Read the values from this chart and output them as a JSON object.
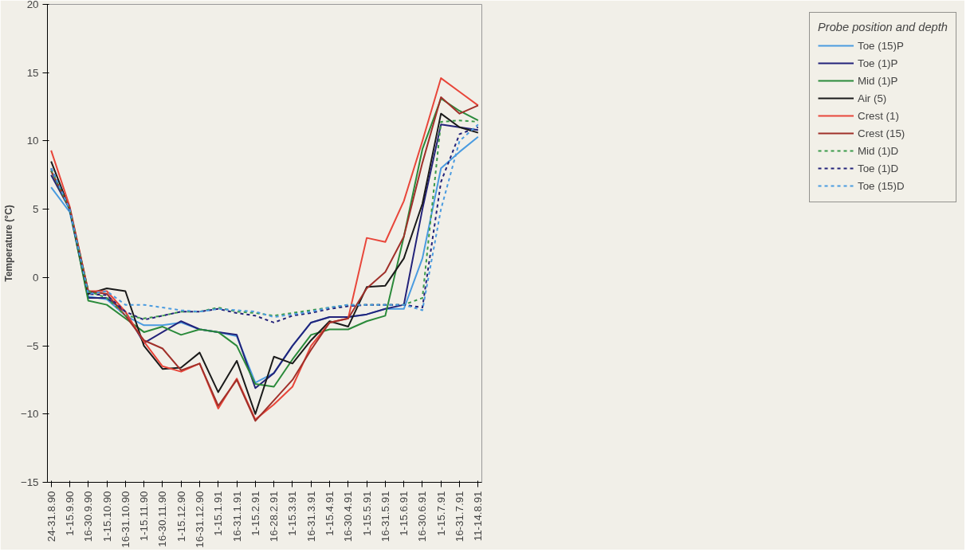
{
  "chart_data": {
    "type": "line",
    "ylabel": "Temperature (°C)",
    "legend_title": "Probe position and depth",
    "legend": "right",
    "grid": false,
    "categories": [
      "24-31.8.90",
      "1-15.9.90",
      "16-30.9.90",
      "1-15.10.90",
      "16-31.10.90",
      "1-15.11.90",
      "16-30.11.90",
      "1-15.12.90",
      "16-31.12.90",
      "1-15.1.91",
      "16-31.1.91",
      "1-15.2.91",
      "16-28.2.91",
      "1-15.3.91",
      "16-31.3.91",
      "1-15.4.91",
      "16-30.4.91",
      "1-15.5.91",
      "16-31.5.91",
      "1-15.6.91",
      "16-30.6.91",
      "1-15.7.91",
      "16-31.7.91",
      "11-14.8.91"
    ],
    "ylim": [
      -15,
      20
    ],
    "yticks": [
      -15,
      -10,
      -5,
      0,
      5,
      10,
      15,
      20
    ],
    "series": [
      {
        "name": "Toe (15)P",
        "color": "#4a9be0",
        "line_style": "solid",
        "values": [
          6.6,
          4.8,
          -1.4,
          -1.6,
          -2.8,
          -3.5,
          -3.5,
          -3.3,
          -3.8,
          -4.0,
          -4.3,
          -7.7,
          -7.0,
          -5.0,
          -3.3,
          -2.9,
          -2.9,
          -2.7,
          -2.3,
          -2.3,
          1.4,
          8.0,
          9.2,
          10.3
        ]
      },
      {
        "name": "Toe (1)P",
        "color": "#23237a",
        "line_style": "solid",
        "values": [
          7.5,
          5.0,
          -1.5,
          -1.5,
          -2.5,
          -4.8,
          -4.0,
          -3.2,
          -3.8,
          -4.0,
          -4.2,
          -8.1,
          -7.0,
          -5.0,
          -3.3,
          -2.9,
          -2.9,
          -2.7,
          -2.3,
          -2.0,
          5.0,
          11.2,
          11.0,
          10.8
        ]
      },
      {
        "name": "Mid (1)P",
        "color": "#2a8a3a",
        "line_style": "solid",
        "values": [
          7.8,
          5.0,
          -1.7,
          -2.0,
          -3.0,
          -4.0,
          -3.6,
          -4.2,
          -3.8,
          -4.0,
          -5.0,
          -7.8,
          -8.0,
          -6.0,
          -4.2,
          -3.8,
          -3.8,
          -3.2,
          -2.8,
          3.0,
          9.4,
          13.1,
          12.2,
          11.5
        ]
      },
      {
        "name": "Air (5)",
        "color": "#1a1a1a",
        "line_style": "solid",
        "values": [
          8.5,
          5.0,
          -1.2,
          -0.8,
          -1.0,
          -5.0,
          -6.7,
          -6.6,
          -5.5,
          -8.4,
          -6.1,
          -10.0,
          -5.8,
          -6.3,
          -4.6,
          -3.2,
          -3.6,
          -0.7,
          -0.6,
          1.4,
          5.4,
          12.0,
          11.0,
          10.6
        ]
      },
      {
        "name": "Crest (1)",
        "color": "#e8463a",
        "line_style": "solid",
        "values": [
          9.3,
          5.2,
          -1.0,
          -1.0,
          -2.5,
          -4.7,
          -6.5,
          -6.9,
          -6.3,
          -9.6,
          -7.4,
          -10.4,
          -9.3,
          -8.0,
          -5.0,
          -3.3,
          -3.0,
          2.9,
          2.6,
          5.6,
          10.0,
          14.6,
          13.6,
          12.6
        ]
      },
      {
        "name": "Crest (15)",
        "color": "#a0302a",
        "line_style": "solid",
        "values": [
          7.8,
          5.1,
          -1.0,
          -1.2,
          -2.8,
          -4.6,
          -5.2,
          -6.8,
          -6.3,
          -9.4,
          -7.5,
          -10.5,
          -9.0,
          -7.5,
          -5.3,
          -3.3,
          -3.0,
          -0.8,
          0.4,
          3.0,
          8.4,
          13.2,
          12.0,
          12.6
        ]
      },
      {
        "name": "Mid (1)D",
        "color": "#3a9a4a",
        "line_style": "dashed",
        "values": [
          7.9,
          5.0,
          -1.0,
          -1.5,
          -2.8,
          -3.0,
          -2.8,
          -2.5,
          -2.5,
          -2.2,
          -2.5,
          -2.6,
          -2.8,
          -2.6,
          -2.4,
          -2.2,
          -2.0,
          -2.0,
          -2.0,
          -2.0,
          -1.5,
          11.4,
          11.5,
          11.4
        ]
      },
      {
        "name": "Toe (1)D",
        "color": "#23237a",
        "line_style": "dashed",
        "values": [
          8.0,
          5.0,
          -1.2,
          -1.3,
          -2.5,
          -3.1,
          -2.8,
          -2.5,
          -2.5,
          -2.3,
          -2.6,
          -2.8,
          -3.3,
          -2.8,
          -2.6,
          -2.3,
          -2.1,
          -2.0,
          -2.0,
          -2.0,
          -2.2,
          7.0,
          10.5,
          11.0
        ]
      },
      {
        "name": "Toe (15)D",
        "color": "#4a9be0",
        "line_style": "dashed",
        "values": [
          8.0,
          5.0,
          -1.2,
          -1.0,
          -2.0,
          -2.0,
          -2.2,
          -2.4,
          -2.5,
          -2.3,
          -2.4,
          -2.5,
          -2.9,
          -2.7,
          -2.5,
          -2.2,
          -2.0,
          -2.0,
          -2.0,
          -2.0,
          -2.4,
          5.0,
          10.0,
          11.2
        ]
      }
    ]
  }
}
